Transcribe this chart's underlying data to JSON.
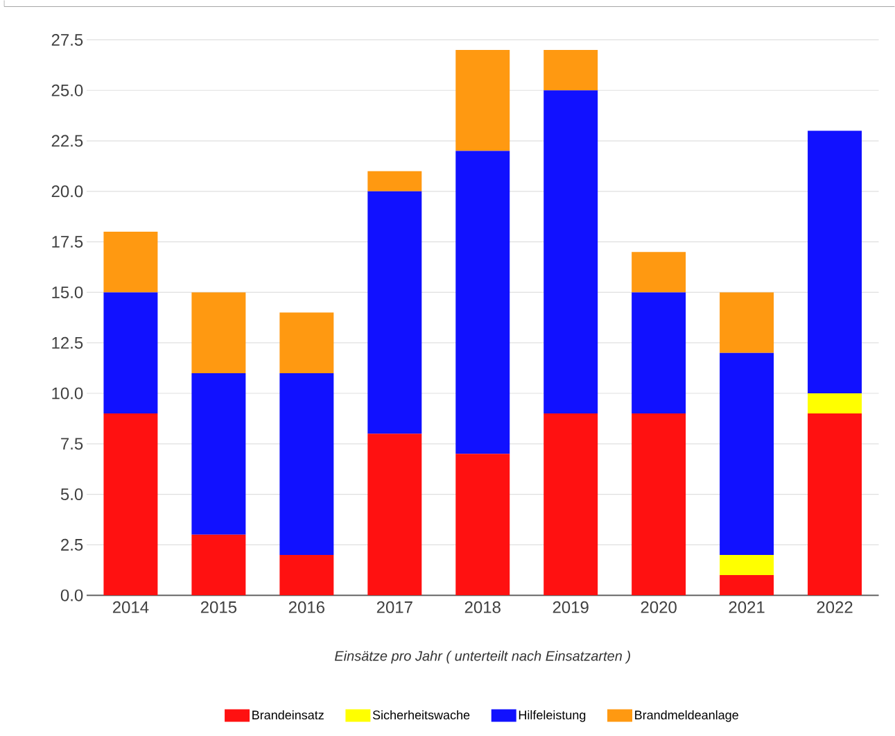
{
  "chart_data": {
    "type": "bar",
    "stacked": true,
    "xlabel": "*Einsätze pro Jahr ( unterteilt nach Einsatzarten )*",
    "categories": [
      "2014",
      "2015",
      "2016",
      "2017",
      "2018",
      "2019",
      "2020",
      "2021",
      "2022"
    ],
    "series": [
      {
        "name": "Brandeinsatz",
        "color": "#ff1111",
        "values": [
          9,
          3,
          2,
          8,
          7,
          9,
          9,
          1,
          9
        ]
      },
      {
        "name": "Sicherheitswache",
        "color": "#ffff00",
        "values": [
          0,
          0,
          0,
          0,
          0,
          0,
          0,
          1,
          1
        ]
      },
      {
        "name": "Hilfeleistung",
        "color": "#1111ff",
        "values": [
          6,
          8,
          9,
          12,
          15,
          16,
          6,
          10,
          13
        ]
      },
      {
        "name": "Brandmeldeanlage",
        "color": "#ff9911",
        "values": [
          3,
          4,
          3,
          1,
          5,
          2,
          2,
          3,
          0
        ]
      }
    ],
    "ylim": [
      0,
      27.5
    ],
    "yticks": [
      {
        "value": 0,
        "label": "0.0"
      },
      {
        "value": 2.5,
        "label": "2.5"
      },
      {
        "value": 5,
        "label": "5.0"
      },
      {
        "value": 7.5,
        "label": "7.5"
      },
      {
        "value": 10,
        "label": "10.0"
      },
      {
        "value": 12.5,
        "label": "12.5"
      },
      {
        "value": 15,
        "label": "15.0"
      },
      {
        "value": 17.5,
        "label": "17.5"
      },
      {
        "value": 20,
        "label": "20.0"
      },
      {
        "value": 22.5,
        "label": "22.5"
      },
      {
        "value": 25,
        "label": "25.0"
      },
      {
        "value": 27.5,
        "label": "27.5"
      }
    ],
    "grid": "y",
    "legend": "bottom"
  }
}
